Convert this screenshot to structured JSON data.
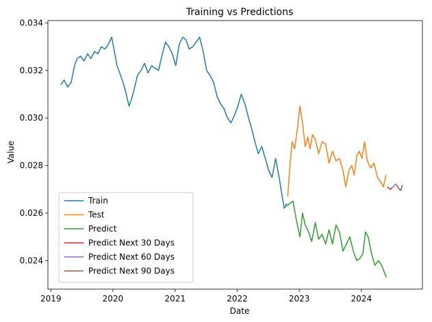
{
  "chart_data": {
    "type": "line",
    "title": "Training vs Predictions",
    "xlabel": "Date",
    "ylabel": "Value",
    "x_type": "date",
    "xlim": [
      "2018-12-15",
      "2024-12-25"
    ],
    "ylim": [
      0.0228,
      0.0341
    ],
    "x_ticks": [
      "2019-01-01",
      "2020-01-01",
      "2021-01-01",
      "2022-01-01",
      "2023-01-01",
      "2024-01-01"
    ],
    "x_tick_labels": [
      "2019",
      "2020",
      "2021",
      "2022",
      "2023",
      "2024"
    ],
    "y_ticks": [
      0.024,
      0.026,
      0.028,
      0.03,
      0.032,
      0.034
    ],
    "y_tick_labels": [
      "0.024",
      "0.026",
      "0.028",
      "0.030",
      "0.032",
      "0.034"
    ],
    "grid": false,
    "legend_position": "lower-left",
    "series": [
      {
        "name": "Train",
        "color": "#1f77b4",
        "x": [
          "2019-03-01",
          "2019-03-20",
          "2019-04-10",
          "2019-05-01",
          "2019-05-20",
          "2019-06-05",
          "2019-06-25",
          "2019-07-15",
          "2019-08-05",
          "2019-08-25",
          "2019-09-15",
          "2019-10-05",
          "2019-10-25",
          "2019-11-15",
          "2019-12-05",
          "2019-12-25",
          "2020-01-10",
          "2020-01-25",
          "2020-02-10",
          "2020-03-01",
          "2020-03-20",
          "2020-04-05",
          "2020-04-20",
          "2020-05-05",
          "2020-05-25",
          "2020-06-15",
          "2020-07-05",
          "2020-07-25",
          "2020-08-15",
          "2020-09-05",
          "2020-09-25",
          "2020-10-15",
          "2020-11-05",
          "2020-11-25",
          "2020-12-15",
          "2021-01-05",
          "2021-01-25",
          "2021-02-15",
          "2021-03-05",
          "2021-03-25",
          "2021-04-15",
          "2021-05-05",
          "2021-05-25",
          "2021-06-15",
          "2021-07-05",
          "2021-07-25",
          "2021-08-15",
          "2021-09-05",
          "2021-09-25",
          "2021-10-15",
          "2021-11-05",
          "2021-11-25",
          "2021-12-15",
          "2022-01-05",
          "2022-01-25",
          "2022-02-15",
          "2022-03-05",
          "2022-03-25",
          "2022-04-15",
          "2022-05-05",
          "2022-05-25",
          "2022-06-15",
          "2022-07-05",
          "2022-07-25",
          "2022-08-15",
          "2022-09-05",
          "2022-09-20",
          "2022-10-05",
          "2022-10-20"
        ],
        "values": [
          0.0314,
          0.0316,
          0.0313,
          0.0315,
          0.0322,
          0.0325,
          0.0326,
          0.0324,
          0.0327,
          0.0325,
          0.0328,
          0.0327,
          0.033,
          0.0329,
          0.0331,
          0.0334,
          0.0328,
          0.0322,
          0.0319,
          0.0315,
          0.031,
          0.0305,
          0.0308,
          0.0312,
          0.0318,
          0.032,
          0.0323,
          0.0319,
          0.0322,
          0.0321,
          0.032,
          0.0326,
          0.0332,
          0.033,
          0.0327,
          0.0322,
          0.0331,
          0.0334,
          0.0333,
          0.0329,
          0.033,
          0.0332,
          0.0334,
          0.0328,
          0.032,
          0.0318,
          0.0315,
          0.0309,
          0.0306,
          0.0304,
          0.03,
          0.0298,
          0.0301,
          0.0305,
          0.031,
          0.0306,
          0.0301,
          0.0296,
          0.029,
          0.0285,
          0.0288,
          0.0283,
          0.0278,
          0.0275,
          0.0283,
          0.0275,
          0.0268,
          0.0262,
          0.0264
        ]
      },
      {
        "name": "Test",
        "color": "#ff7f0e",
        "x": [
          "2022-10-25",
          "2022-11-05",
          "2022-11-20",
          "2022-12-05",
          "2022-12-20",
          "2023-01-05",
          "2023-01-20",
          "2023-02-05",
          "2023-02-20",
          "2023-03-05",
          "2023-03-20",
          "2023-04-05",
          "2023-04-25",
          "2023-05-15",
          "2023-06-05",
          "2023-06-25",
          "2023-07-15",
          "2023-08-05",
          "2023-08-25",
          "2023-09-15",
          "2023-10-01",
          "2023-10-20",
          "2023-11-05",
          "2023-11-20",
          "2023-12-05",
          "2023-12-20",
          "2024-01-05",
          "2024-01-20",
          "2024-02-05",
          "2024-02-25",
          "2024-03-15",
          "2024-04-05",
          "2024-04-25",
          "2024-05-10",
          "2024-05-25"
        ],
        "values": [
          0.0267,
          0.0278,
          0.029,
          0.0287,
          0.0295,
          0.0305,
          0.0298,
          0.0288,
          0.0292,
          0.0287,
          0.0293,
          0.0291,
          0.0285,
          0.029,
          0.0289,
          0.0281,
          0.0286,
          0.0282,
          0.0283,
          0.0278,
          0.0271,
          0.0278,
          0.028,
          0.0276,
          0.0284,
          0.0286,
          0.0283,
          0.029,
          0.0282,
          0.0279,
          0.0281,
          0.0275,
          0.0273,
          0.0271,
          0.0276
        ]
      },
      {
        "name": "Predict",
        "color": "#2ca02c",
        "x": [
          "2022-10-20",
          "2022-11-05",
          "2022-11-25",
          "2022-12-15",
          "2023-01-05",
          "2023-01-20",
          "2023-02-05",
          "2023-02-25",
          "2023-03-15",
          "2023-04-05",
          "2023-04-25",
          "2023-05-15",
          "2023-06-05",
          "2023-06-25",
          "2023-07-15",
          "2023-08-05",
          "2023-08-25",
          "2023-09-15",
          "2023-10-05",
          "2023-10-25",
          "2023-11-15",
          "2023-12-05",
          "2023-12-25",
          "2024-01-10",
          "2024-01-25",
          "2024-02-10",
          "2024-03-01",
          "2024-03-20",
          "2024-04-10",
          "2024-04-30",
          "2024-05-15",
          "2024-05-28"
        ],
        "values": [
          0.0263,
          0.0264,
          0.0265,
          0.0257,
          0.025,
          0.026,
          0.0255,
          0.0252,
          0.0248,
          0.0256,
          0.0249,
          0.0251,
          0.0247,
          0.0253,
          0.0247,
          0.0255,
          0.0252,
          0.0244,
          0.0247,
          0.025,
          0.0244,
          0.024,
          0.0241,
          0.0243,
          0.0252,
          0.025,
          0.0243,
          0.0238,
          0.024,
          0.0238,
          0.0235,
          0.0233
        ]
      },
      {
        "name": "Predict Next 30 Days",
        "color": "#d62728",
        "x": [
          "2024-06-01",
          "2024-06-10",
          "2024-06-20",
          "2024-06-30"
        ],
        "values": [
          0.0271,
          0.02705,
          0.027,
          0.02708
        ]
      },
      {
        "name": "Predict Next 60 Days",
        "color": "#9467bd",
        "x": [
          "2024-06-30",
          "2024-07-10",
          "2024-07-20",
          "2024-07-30"
        ],
        "values": [
          0.02708,
          0.02712,
          0.02722,
          0.02715
        ]
      },
      {
        "name": "Predict Next 90 Days",
        "color": "#8c564b",
        "x": [
          "2024-07-30",
          "2024-08-10",
          "2024-08-20",
          "2024-08-29"
        ],
        "values": [
          0.02715,
          0.027,
          0.02695,
          0.02718
        ]
      }
    ]
  }
}
